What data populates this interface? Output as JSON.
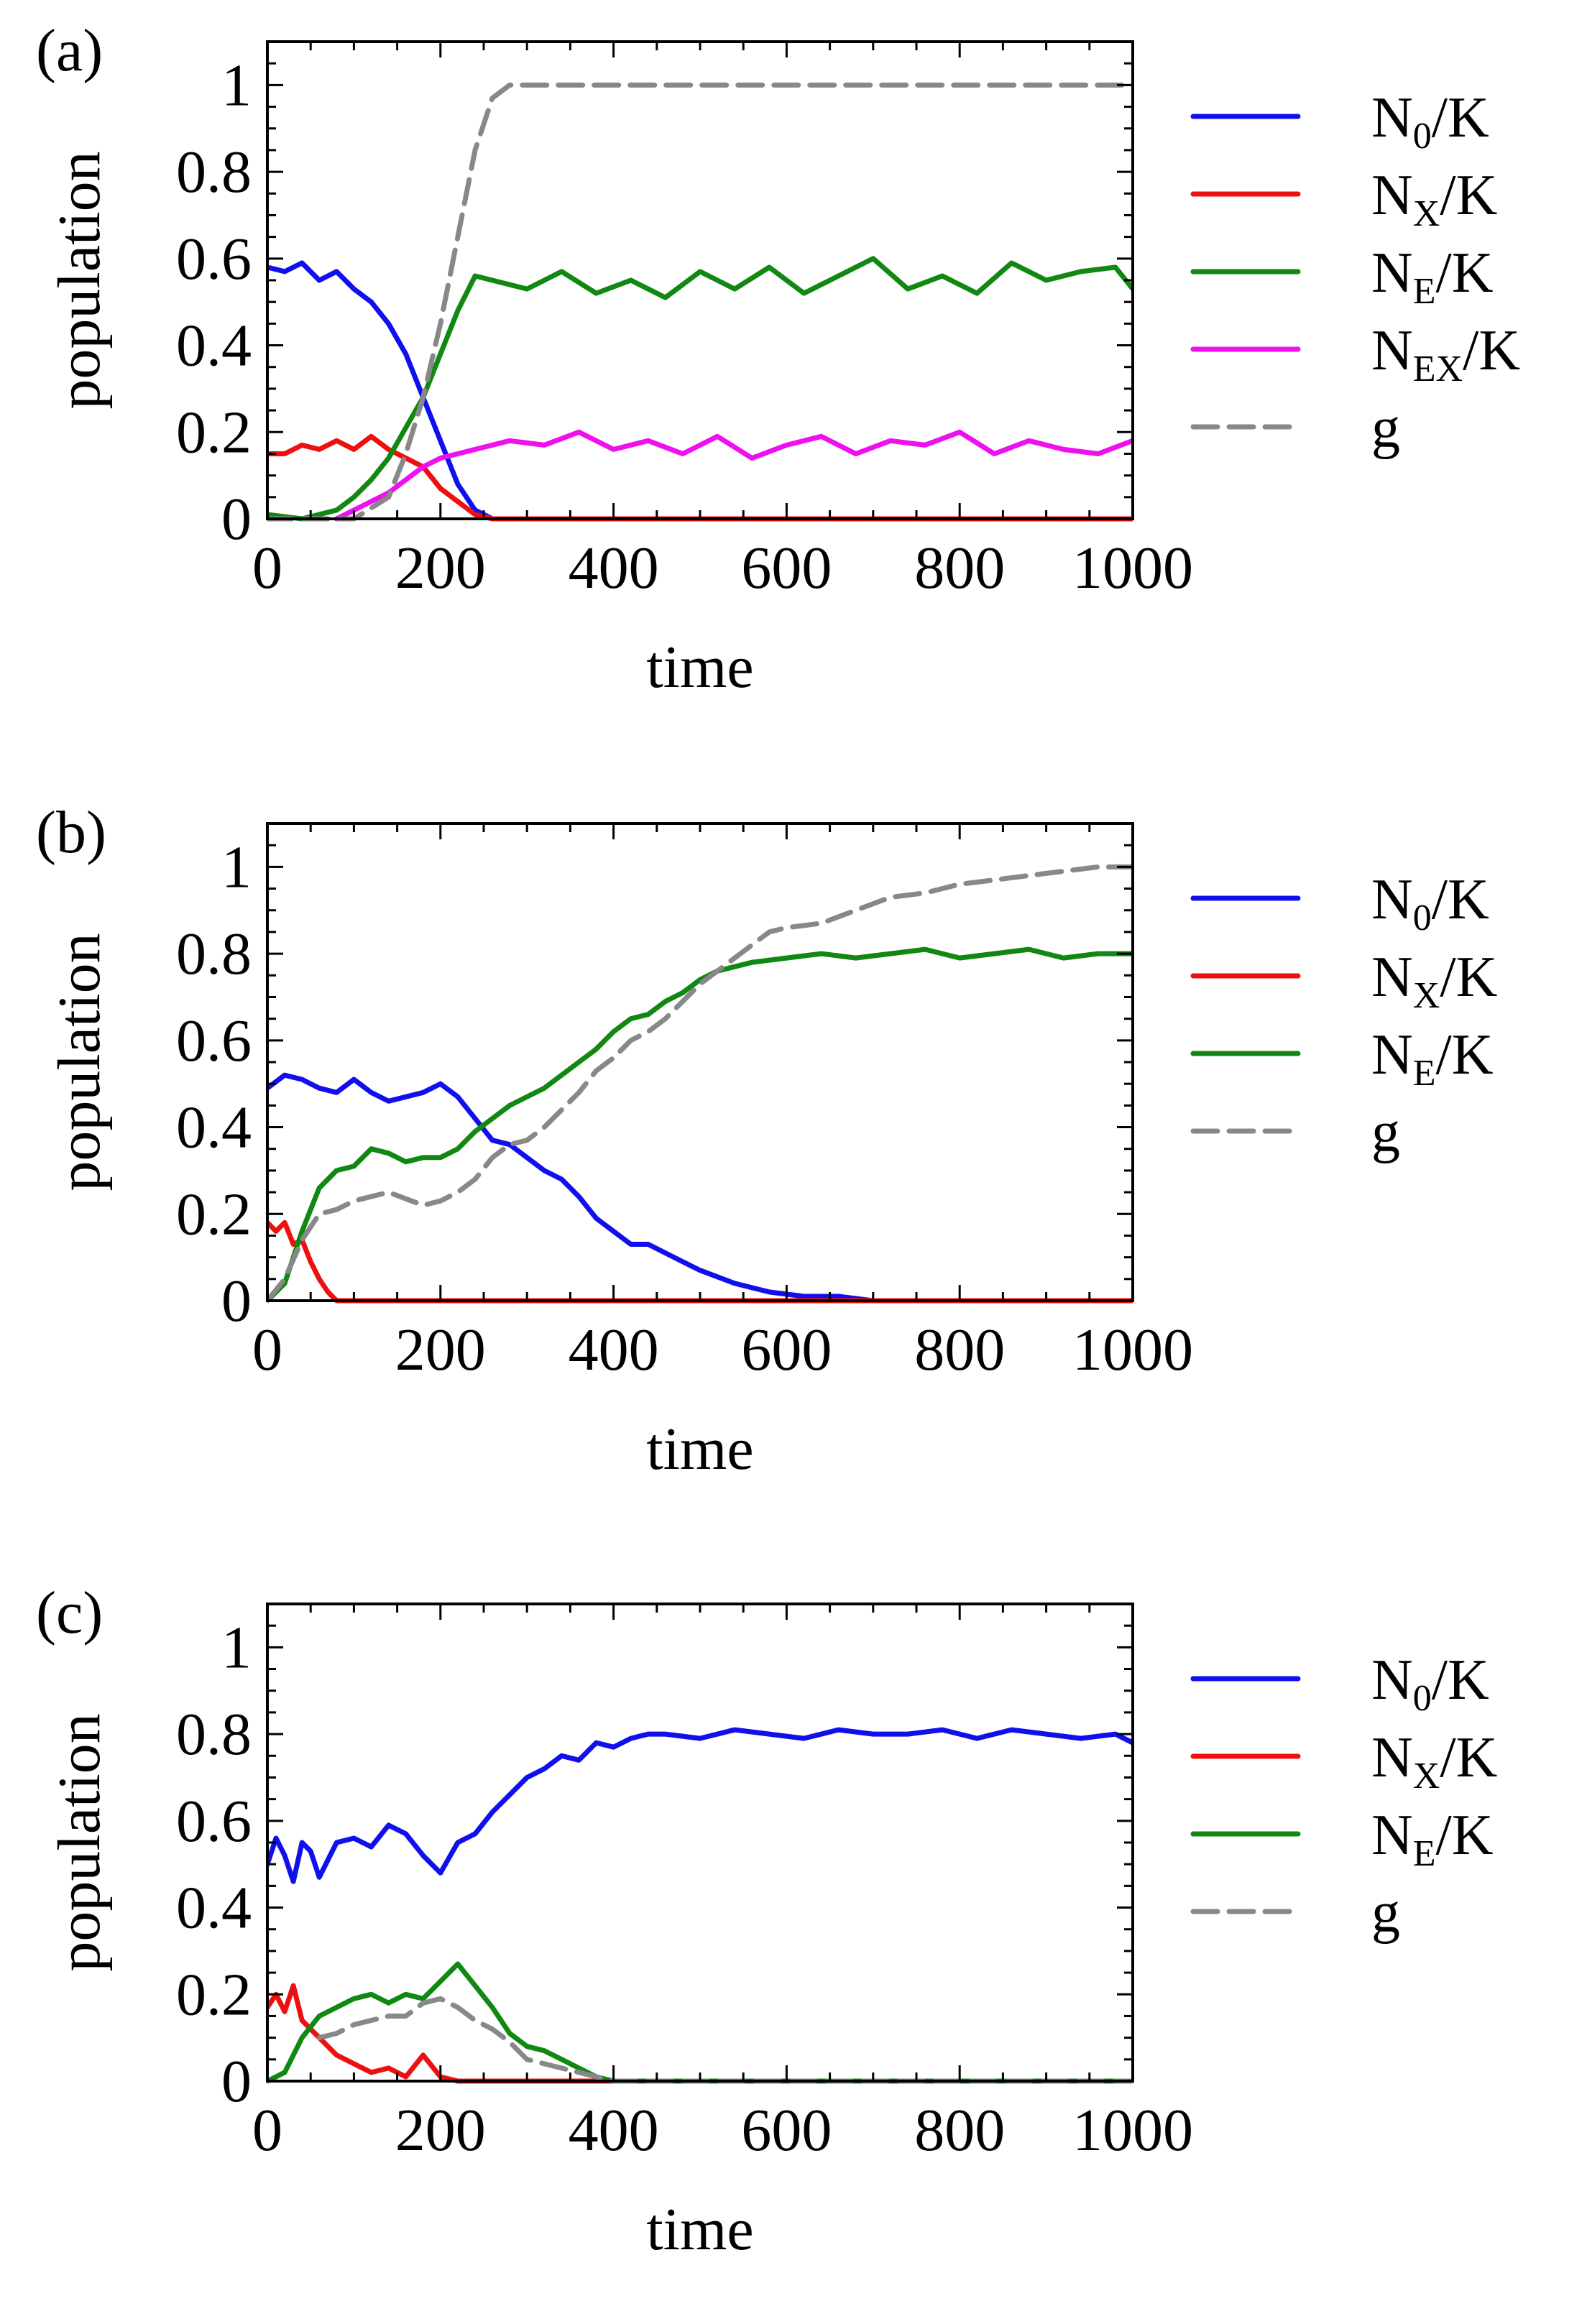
{
  "chart_data": [
    {
      "type": "line",
      "panel_label": "(a)",
      "xlabel": "time",
      "ylabel": "population",
      "xlim": [
        0,
        1000
      ],
      "ylim": [
        0,
        1.1
      ],
      "xticks": [
        "0",
        "200",
        "400",
        "600",
        "800",
        "1000"
      ],
      "yticks": [
        "0",
        "0.2",
        "0.4",
        "0.6",
        "0.8",
        "1"
      ],
      "legend_position": "right",
      "series": [
        {
          "name": "N0/K",
          "label_main": "N",
          "label_sub": "0",
          "label_tail": "/K",
          "color": "#1010ee",
          "dashed": false,
          "x": [
            0,
            20,
            40,
            60,
            80,
            100,
            120,
            140,
            160,
            180,
            200,
            220,
            240,
            260,
            300,
            400,
            600,
            800,
            1000
          ],
          "y": [
            0.58,
            0.57,
            0.59,
            0.55,
            0.57,
            0.53,
            0.5,
            0.45,
            0.38,
            0.28,
            0.18,
            0.08,
            0.02,
            0.0,
            0.0,
            0.0,
            0.0,
            0.0,
            0.0
          ]
        },
        {
          "name": "NX/K",
          "label_main": "N",
          "label_sub": "X",
          "label_tail": "/K",
          "color": "#ee1010",
          "dashed": false,
          "x": [
            0,
            20,
            40,
            60,
            80,
            100,
            120,
            140,
            160,
            180,
            200,
            220,
            240,
            260,
            300,
            400,
            600,
            800,
            1000
          ],
          "y": [
            0.15,
            0.15,
            0.17,
            0.16,
            0.18,
            0.16,
            0.19,
            0.16,
            0.14,
            0.12,
            0.07,
            0.04,
            0.01,
            0.0,
            0.0,
            0.0,
            0.0,
            0.0,
            0.0
          ]
        },
        {
          "name": "NE/K",
          "label_main": "N",
          "label_sub": "E",
          "label_tail": "/K",
          "color": "#118811",
          "dashed": false,
          "x": [
            0,
            40,
            80,
            100,
            120,
            140,
            160,
            180,
            200,
            220,
            240,
            260,
            300,
            340,
            380,
            420,
            460,
            500,
            540,
            580,
            620,
            660,
            700,
            740,
            780,
            820,
            860,
            900,
            940,
            980,
            1000
          ],
          "y": [
            0.01,
            0.0,
            0.02,
            0.05,
            0.09,
            0.14,
            0.21,
            0.28,
            0.38,
            0.48,
            0.56,
            0.55,
            0.53,
            0.57,
            0.52,
            0.55,
            0.51,
            0.57,
            0.53,
            0.58,
            0.52,
            0.56,
            0.6,
            0.53,
            0.56,
            0.52,
            0.59,
            0.55,
            0.57,
            0.58,
            0.53
          ]
        },
        {
          "name": "NEX/K",
          "label_main": "N",
          "label_sub": "EX",
          "label_tail": "/K",
          "color": "#ee10ee",
          "dashed": false,
          "x": [
            80,
            100,
            120,
            140,
            160,
            180,
            200,
            240,
            280,
            320,
            360,
            400,
            440,
            480,
            520,
            560,
            600,
            640,
            680,
            720,
            760,
            800,
            840,
            880,
            920,
            960,
            1000
          ],
          "y": [
            0.0,
            0.02,
            0.04,
            0.06,
            0.09,
            0.12,
            0.14,
            0.16,
            0.18,
            0.17,
            0.2,
            0.16,
            0.18,
            0.15,
            0.19,
            0.14,
            0.17,
            0.19,
            0.15,
            0.18,
            0.17,
            0.2,
            0.15,
            0.18,
            0.16,
            0.15,
            0.18
          ]
        },
        {
          "name": "g",
          "label_main": "g",
          "label_sub": "",
          "label_tail": "",
          "color": "#888888",
          "dashed": true,
          "x": [
            0,
            100,
            140,
            160,
            180,
            200,
            220,
            240,
            260,
            280,
            300,
            400,
            600,
            800,
            1000
          ],
          "y": [
            0.0,
            0.0,
            0.05,
            0.15,
            0.28,
            0.45,
            0.65,
            0.85,
            0.97,
            1.0,
            1.0,
            1.0,
            1.0,
            1.0,
            1.0
          ]
        }
      ]
    },
    {
      "type": "line",
      "panel_label": "(b)",
      "xlabel": "time",
      "ylabel": "population",
      "xlim": [
        0,
        1000
      ],
      "ylim": [
        0,
        1.1
      ],
      "xticks": [
        "0",
        "200",
        "400",
        "600",
        "800",
        "1000"
      ],
      "yticks": [
        "0",
        "0.2",
        "0.4",
        "0.6",
        "0.8",
        "1"
      ],
      "legend_position": "right",
      "series": [
        {
          "name": "N0/K",
          "label_main": "N",
          "label_sub": "0",
          "label_tail": "/K",
          "color": "#1010ee",
          "dashed": false,
          "x": [
            0,
            20,
            40,
            60,
            80,
            100,
            120,
            140,
            160,
            180,
            200,
            220,
            240,
            260,
            280,
            300,
            320,
            340,
            360,
            380,
            400,
            420,
            440,
            460,
            480,
            500,
            540,
            580,
            620,
            660,
            700,
            800,
            900,
            1000
          ],
          "y": [
            0.49,
            0.52,
            0.51,
            0.49,
            0.48,
            0.51,
            0.48,
            0.46,
            0.47,
            0.48,
            0.5,
            0.47,
            0.42,
            0.37,
            0.36,
            0.33,
            0.3,
            0.28,
            0.24,
            0.19,
            0.16,
            0.13,
            0.13,
            0.11,
            0.09,
            0.07,
            0.04,
            0.02,
            0.01,
            0.01,
            0.0,
            0.0,
            0.0,
            0.0
          ]
        },
        {
          "name": "NX/K",
          "label_main": "N",
          "label_sub": "X",
          "label_tail": "/K",
          "color": "#ee1010",
          "dashed": false,
          "x": [
            0,
            10,
            20,
            30,
            40,
            50,
            60,
            70,
            80,
            100,
            200,
            400,
            600,
            800,
            1000
          ],
          "y": [
            0.18,
            0.16,
            0.18,
            0.13,
            0.14,
            0.09,
            0.05,
            0.02,
            0.0,
            0.0,
            0.0,
            0.0,
            0.0,
            0.0,
            0.0
          ]
        },
        {
          "name": "NE/K",
          "label_main": "N",
          "label_sub": "E",
          "label_tail": "/K",
          "color": "#118811",
          "dashed": false,
          "x": [
            0,
            20,
            40,
            60,
            80,
            100,
            120,
            140,
            160,
            180,
            200,
            220,
            240,
            260,
            280,
            300,
            320,
            340,
            360,
            380,
            400,
            420,
            440,
            460,
            480,
            500,
            520,
            540,
            560,
            600,
            640,
            680,
            720,
            760,
            800,
            840,
            880,
            920,
            960,
            1000
          ],
          "y": [
            0.0,
            0.04,
            0.16,
            0.26,
            0.3,
            0.31,
            0.35,
            0.34,
            0.32,
            0.33,
            0.33,
            0.35,
            0.39,
            0.42,
            0.45,
            0.47,
            0.49,
            0.52,
            0.55,
            0.58,
            0.62,
            0.65,
            0.66,
            0.69,
            0.71,
            0.74,
            0.76,
            0.77,
            0.78,
            0.79,
            0.8,
            0.79,
            0.8,
            0.81,
            0.79,
            0.8,
            0.81,
            0.79,
            0.8,
            0.8
          ]
        },
        {
          "name": "g",
          "label_main": "g",
          "label_sub": "",
          "label_tail": "",
          "color": "#888888",
          "dashed": true,
          "x": [
            0,
            20,
            40,
            60,
            80,
            100,
            140,
            180,
            200,
            220,
            240,
            260,
            280,
            300,
            320,
            340,
            360,
            380,
            400,
            420,
            440,
            460,
            480,
            500,
            520,
            540,
            560,
            580,
            600,
            640,
            680,
            720,
            760,
            800,
            840,
            880,
            920,
            960,
            1000
          ],
          "y": [
            0.0,
            0.05,
            0.14,
            0.2,
            0.21,
            0.23,
            0.25,
            0.22,
            0.23,
            0.25,
            0.28,
            0.33,
            0.36,
            0.37,
            0.4,
            0.44,
            0.48,
            0.53,
            0.56,
            0.6,
            0.62,
            0.65,
            0.69,
            0.73,
            0.76,
            0.79,
            0.82,
            0.85,
            0.86,
            0.87,
            0.9,
            0.93,
            0.94,
            0.96,
            0.97,
            0.98,
            0.99,
            1.0,
            1.0
          ]
        }
      ]
    },
    {
      "type": "line",
      "panel_label": "(c)",
      "xlabel": "time",
      "ylabel": "population",
      "xlim": [
        0,
        1000
      ],
      "ylim": [
        0,
        1.1
      ],
      "xticks": [
        "0",
        "200",
        "400",
        "600",
        "800",
        "1000"
      ],
      "yticks": [
        "0",
        "0.2",
        "0.4",
        "0.6",
        "0.8",
        "1"
      ],
      "legend_position": "right",
      "series": [
        {
          "name": "N0/K",
          "label_main": "N",
          "label_sub": "0",
          "label_tail": "/K",
          "color": "#1010ee",
          "dashed": false,
          "x": [
            0,
            10,
            20,
            30,
            40,
            50,
            60,
            80,
            100,
            120,
            140,
            160,
            180,
            200,
            220,
            240,
            260,
            280,
            300,
            320,
            340,
            360,
            380,
            400,
            420,
            440,
            460,
            500,
            540,
            580,
            620,
            660,
            700,
            740,
            780,
            820,
            860,
            900,
            940,
            980,
            1000
          ],
          "y": [
            0.5,
            0.56,
            0.52,
            0.46,
            0.55,
            0.53,
            0.47,
            0.55,
            0.56,
            0.54,
            0.59,
            0.57,
            0.52,
            0.48,
            0.55,
            0.57,
            0.62,
            0.66,
            0.7,
            0.72,
            0.75,
            0.74,
            0.78,
            0.77,
            0.79,
            0.8,
            0.8,
            0.79,
            0.81,
            0.8,
            0.79,
            0.81,
            0.8,
            0.8,
            0.81,
            0.79,
            0.81,
            0.8,
            0.79,
            0.8,
            0.78
          ]
        },
        {
          "name": "NX/K",
          "label_main": "N",
          "label_sub": "X",
          "label_tail": "/K",
          "color": "#ee1010",
          "dashed": false,
          "x": [
            0,
            10,
            20,
            30,
            40,
            50,
            60,
            80,
            100,
            120,
            140,
            160,
            180,
            200,
            220,
            240,
            300,
            400,
            600,
            800,
            1000
          ],
          "y": [
            0.17,
            0.2,
            0.16,
            0.22,
            0.14,
            0.12,
            0.1,
            0.06,
            0.04,
            0.02,
            0.03,
            0.01,
            0.06,
            0.01,
            0.0,
            0.0,
            0.0,
            0.0,
            0.0,
            0.0,
            0.0
          ]
        },
        {
          "name": "NE/K",
          "label_main": "N",
          "label_sub": "E",
          "label_tail": "/K",
          "color": "#118811",
          "dashed": false,
          "x": [
            0,
            20,
            40,
            60,
            80,
            100,
            120,
            140,
            160,
            180,
            200,
            220,
            240,
            260,
            280,
            300,
            320,
            340,
            360,
            380,
            400,
            420,
            500,
            600,
            800,
            1000
          ],
          "y": [
            0.0,
            0.02,
            0.1,
            0.15,
            0.17,
            0.19,
            0.2,
            0.18,
            0.2,
            0.19,
            0.23,
            0.27,
            0.22,
            0.17,
            0.11,
            0.08,
            0.07,
            0.05,
            0.03,
            0.01,
            0.0,
            0.0,
            0.0,
            0.0,
            0.0,
            0.0
          ]
        },
        {
          "name": "g",
          "label_main": "g",
          "label_sub": "",
          "label_tail": "",
          "color": "#888888",
          "dashed": true,
          "x": [
            60,
            80,
            100,
            120,
            140,
            160,
            180,
            200,
            220,
            240,
            260,
            280,
            300,
            320,
            340,
            360,
            380,
            400,
            500,
            600,
            800,
            1000
          ],
          "y": [
            0.1,
            0.11,
            0.13,
            0.14,
            0.15,
            0.15,
            0.18,
            0.19,
            0.17,
            0.14,
            0.12,
            0.09,
            0.05,
            0.04,
            0.03,
            0.02,
            0.01,
            0.0,
            0.0,
            0.0,
            0.0,
            0.0
          ]
        }
      ]
    }
  ]
}
